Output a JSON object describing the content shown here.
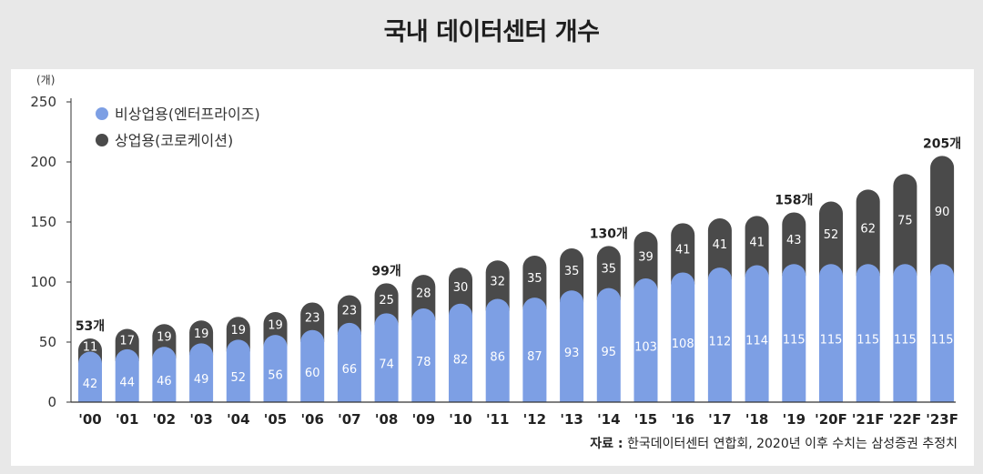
{
  "title": "국내 데이터센터 개수",
  "colors": {
    "non_commercial": "#7d9fe4",
    "commercial": "#4a4a4a"
  },
  "chart_data": {
    "type": "bar",
    "stacked": true,
    "unit_label": "(개)",
    "categories": [
      "'00",
      "'01",
      "'02",
      "'03",
      "'04",
      "'05",
      "'06",
      "'07",
      "'08",
      "'09",
      "'10",
      "'11",
      "'12",
      "'13",
      "'14",
      "'15",
      "'16",
      "'17",
      "'18",
      "'19",
      "'20F",
      "'21F",
      "'22F",
      "'23F"
    ],
    "series": [
      {
        "name": "비상업용(엔터프라이즈)",
        "color": "#7d9fe4",
        "values": [
          42,
          44,
          46,
          49,
          52,
          56,
          60,
          66,
          74,
          78,
          82,
          86,
          87,
          93,
          95,
          103,
          108,
          112,
          114,
          115,
          115,
          115,
          115,
          115
        ]
      },
      {
        "name": "상업용(코로케이션)",
        "color": "#4a4a4a",
        "values": [
          11,
          17,
          19,
          19,
          19,
          19,
          23,
          23,
          25,
          28,
          30,
          32,
          35,
          35,
          35,
          39,
          41,
          41,
          41,
          43,
          52,
          62,
          75,
          90
        ]
      }
    ],
    "total_labels": [
      {
        "category": "'00",
        "text": "53개"
      },
      {
        "category": "'08",
        "text": "99개"
      },
      {
        "category": "'14",
        "text": "130개"
      },
      {
        "category": "'19",
        "text": "158개"
      },
      {
        "category": "'23F",
        "text": "205개"
      }
    ],
    "yticks": [
      0,
      50,
      100,
      150,
      200,
      250
    ],
    "ylim": [
      0,
      250
    ],
    "grid": false,
    "legend_position": "top-left"
  },
  "source": {
    "key": "자료 :",
    "text": " 한국데이터센터 연합회, 2020년 이후 수치는 삼성증권 추정치"
  }
}
